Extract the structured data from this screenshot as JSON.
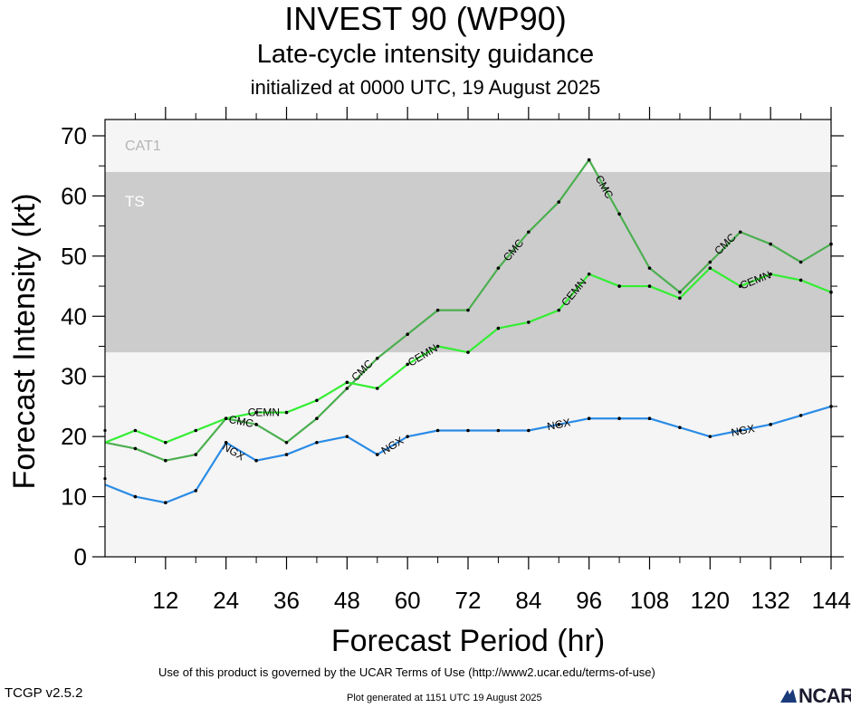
{
  "header": {
    "title": "INVEST 90 (WP90)",
    "subtitle": "Late-cycle intensity guidance",
    "init": "initialized at 0000 UTC, 19 August 2025"
  },
  "footer": {
    "terms": "Use of this product is governed by the UCAR Terms of Use (http://www2.ucar.edu/terms-of-use)",
    "version": "TCGP v2.5.2",
    "generated": "Plot generated at 1151 UTC   19 August 2025",
    "logo_text": "NCAR"
  },
  "chart_data": {
    "type": "line",
    "xlabel": "Forecast Period (hr)",
    "ylabel": "Forecast Intensity (kt)",
    "xlim": [
      0,
      144
    ],
    "ylim": [
      0,
      70
    ],
    "xticks": [
      12,
      24,
      36,
      48,
      60,
      72,
      84,
      96,
      108,
      120,
      132,
      144
    ],
    "yticks": [
      0,
      10,
      20,
      30,
      40,
      50,
      60,
      70
    ],
    "bands": [
      {
        "label": "TS",
        "from": 34,
        "to": 64,
        "color": "#cccccc"
      },
      {
        "label": "CAT1",
        "from": 64,
        "to": 70,
        "color": "#f5f5f5"
      }
    ],
    "series": [
      {
        "name": "CMC",
        "color": "#4caf50",
        "x": [
          0,
          6,
          12,
          18,
          24,
          30,
          36,
          42,
          48,
          54,
          60,
          66,
          72,
          78,
          84,
          90,
          96,
          102,
          108,
          114,
          120,
          126,
          132,
          138,
          144
        ],
        "values": [
          19,
          18,
          16,
          17,
          23,
          22,
          19,
          23,
          28,
          33,
          37,
          41,
          41,
          48,
          54,
          59,
          66,
          57,
          48,
          44,
          49,
          54,
          52,
          49,
          52
        ]
      },
      {
        "name": "CEMN",
        "color": "#33ee33",
        "x": [
          0,
          6,
          12,
          18,
          24,
          30,
          36,
          42,
          48,
          54,
          60,
          66,
          72,
          78,
          84,
          90,
          96,
          102,
          108,
          114,
          120,
          126,
          132,
          138,
          144
        ],
        "values": [
          19,
          21,
          19,
          21,
          23,
          24,
          24,
          26,
          29,
          28,
          32,
          35,
          34,
          38,
          39,
          41,
          47,
          45,
          45,
          43,
          48,
          45,
          47,
          46,
          44
        ]
      },
      {
        "name": "NGX",
        "color": "#2b8ce6",
        "x": [
          0,
          6,
          12,
          18,
          24,
          30,
          36,
          42,
          48,
          54,
          60,
          66,
          72,
          78,
          84,
          90,
          96,
          102,
          108,
          114,
          120,
          126,
          132,
          138,
          144
        ],
        "values": [
          12,
          10,
          9,
          11,
          19,
          16,
          17,
          19,
          20,
          17,
          20,
          21,
          21,
          21,
          21,
          22,
          23,
          23,
          23,
          21.5,
          20,
          21,
          22,
          23.5,
          25
        ]
      }
    ],
    "labels": [
      {
        "series": "CMC",
        "text": "CMC",
        "x": 27,
        "y": 22.5
      },
      {
        "series": "CMC",
        "text": "CMC",
        "x": 51,
        "y": 31
      },
      {
        "series": "CMC",
        "text": "CMC",
        "x": 81,
        "y": 51
      },
      {
        "series": "CMC",
        "text": "CMC",
        "x": 99,
        "y": 61.5
      },
      {
        "series": "CMC",
        "text": "CMC",
        "x": 123,
        "y": 52
      },
      {
        "series": "CEMN",
        "text": "CEMN",
        "x": 31.5,
        "y": 24
      },
      {
        "series": "CEMN",
        "text": "CEMN",
        "x": 63,
        "y": 33.5
      },
      {
        "series": "CEMN",
        "text": "CEMN",
        "x": 93,
        "y": 44
      },
      {
        "series": "CEMN",
        "text": "CEMN",
        "x": 129,
        "y": 46
      },
      {
        "series": "NGX",
        "text": "NGX",
        "x": 25.5,
        "y": 17.5
      },
      {
        "series": "NGX",
        "text": "NGX",
        "x": 57,
        "y": 18.5
      },
      {
        "series": "NGX",
        "text": "NGX",
        "x": 90,
        "y": 22
      },
      {
        "series": "NGX",
        "text": "NGX",
        "x": 126.5,
        "y": 21
      }
    ]
  }
}
